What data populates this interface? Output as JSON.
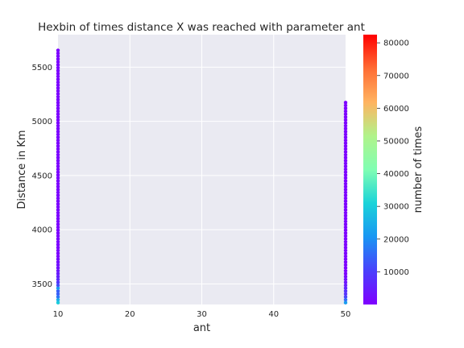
{
  "chart_data": {
    "type": "heatmap",
    "title": "Hexbin of times distance X was reached with parameter ant",
    "xlabel": "ant",
    "ylabel": "Distance in Km",
    "xlim": [
      10,
      50
    ],
    "ylim": [
      3310,
      5800
    ],
    "x_ticks": [
      10,
      20,
      30,
      40,
      50
    ],
    "y_ticks": [
      3500,
      4000,
      4500,
      5000,
      5500
    ],
    "grid": true,
    "colorbar": {
      "label": "number of times",
      "colormap": "rainbow",
      "range": [
        0,
        82500
      ],
      "ticks": [
        10000,
        20000,
        30000,
        40000,
        50000,
        60000,
        70000,
        80000
      ]
    },
    "series": [
      {
        "x": 10,
        "bins": [
          {
            "y": 3330,
            "count": 30000
          },
          {
            "y": 3360,
            "count": 25000
          },
          {
            "y": 3390,
            "count": 17000
          },
          {
            "y": 3420,
            "count": 14000
          },
          {
            "y": 3450,
            "count": 22000
          },
          {
            "y": 3480,
            "count": 12000
          },
          {
            "y": 3510,
            "count": 9000
          },
          {
            "y": 3540,
            "count": 7000
          },
          {
            "y": 3570,
            "count": 5500
          },
          {
            "y": 3600,
            "count": 4500
          },
          {
            "y": 3630,
            "count": 3500
          },
          {
            "y": 3660,
            "count": 2800
          },
          {
            "y": 3690,
            "count": 2200
          },
          {
            "y": 3720,
            "count": 1800
          }
        ],
        "max_y": 5680,
        "baseline_count": 500
      },
      {
        "x": 50,
        "bins": [
          {
            "y": 3330,
            "count": 22000
          },
          {
            "y": 3360,
            "count": 16000
          },
          {
            "y": 3390,
            "count": 11000
          },
          {
            "y": 3420,
            "count": 8000
          },
          {
            "y": 3450,
            "count": 6000
          },
          {
            "y": 3480,
            "count": 4500
          },
          {
            "y": 3510,
            "count": 3500
          },
          {
            "y": 3540,
            "count": 2500
          },
          {
            "y": 3570,
            "count": 1800
          }
        ],
        "max_y": 5200,
        "baseline_count": 400
      }
    ]
  }
}
